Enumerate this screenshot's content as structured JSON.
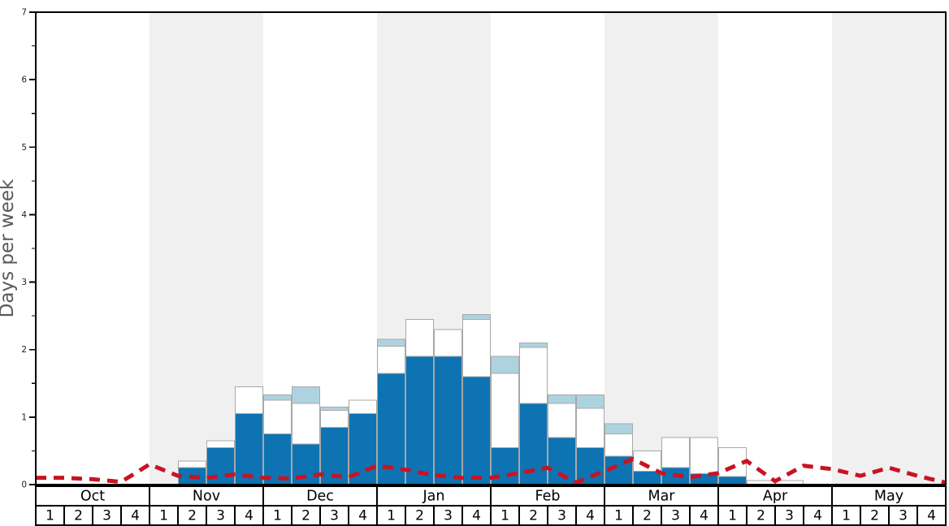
{
  "chart_data": {
    "type": "bar",
    "subtype": "stacked-bars-with-dashed-average-line",
    "title": "",
    "xlabel": "",
    "ylabel": "Days per week",
    "ylim": [
      0,
      7
    ],
    "y_major_ticks": [
      0,
      1,
      2,
      3,
      4,
      5,
      6,
      7
    ],
    "y_minor_step": 0.5,
    "grid": "off",
    "legend": "none",
    "months": [
      "Oct",
      "Nov",
      "Dec",
      "Jan",
      "Feb",
      "Mar",
      "Apr",
      "May"
    ],
    "weeks_per_month": [
      "1",
      "2",
      "3",
      "4"
    ],
    "shaded_months": [
      "Nov",
      "Jan",
      "Mar",
      "May"
    ],
    "categories": [
      "Oct-1",
      "Oct-2",
      "Oct-3",
      "Oct-4",
      "Nov-1",
      "Nov-2",
      "Nov-3",
      "Nov-4",
      "Dec-1",
      "Dec-2",
      "Dec-3",
      "Dec-4",
      "Jan-1",
      "Jan-2",
      "Jan-3",
      "Jan-4",
      "Feb-1",
      "Feb-2",
      "Feb-3",
      "Feb-4",
      "Mar-1",
      "Mar-2",
      "Mar-3",
      "Mar-4",
      "Apr-1",
      "Apr-2",
      "Apr-3",
      "Apr-4",
      "May-1",
      "May-2",
      "May-3",
      "May-4"
    ],
    "series": [
      {
        "name": "dark-blue-days",
        "color": "#0e73b2",
        "values": [
          0,
          0,
          0,
          0,
          0,
          0.25,
          0.55,
          1.05,
          0.75,
          0.6,
          0.85,
          1.05,
          1.65,
          1.9,
          1.9,
          1.6,
          0.55,
          1.2,
          0.7,
          0.55,
          0.42,
          0.2,
          0.25,
          0.16,
          0.12,
          0,
          0,
          0,
          0,
          0,
          0,
          0
        ]
      },
      {
        "name": "white-days",
        "color": "#ffffff",
        "values": [
          0,
          0,
          0,
          0,
          0,
          0.1,
          0.1,
          0.4,
          0.5,
          0.6,
          0.25,
          0.2,
          0.4,
          0.55,
          0.4,
          0.85,
          1.1,
          0.83,
          0.5,
          0.58,
          0.33,
          0.3,
          0.45,
          0.54,
          0.43,
          0.06,
          0.06,
          0,
          0,
          0,
          0,
          0
        ]
      },
      {
        "name": "light-blue-days",
        "color": "#aed3e0",
        "values": [
          0,
          0,
          0,
          0,
          0,
          0,
          0,
          0,
          0.08,
          0.25,
          0.05,
          0,
          0.1,
          0,
          0,
          0.07,
          0.25,
          0.07,
          0.13,
          0.2,
          0.15,
          0,
          0,
          0,
          0,
          0,
          0,
          0,
          0,
          0,
          0,
          0
        ]
      }
    ],
    "average_line": {
      "name": "red-dashed-average-line",
      "color": "#c91322",
      "style": "dashed",
      "x_positions": "week-boundaries-0-to-32",
      "values": [
        0.1,
        0.1,
        0.08,
        0.04,
        0.3,
        0.13,
        0.1,
        0.15,
        0.1,
        0.09,
        0.15,
        0.11,
        0.28,
        0.22,
        0.14,
        0.1,
        0.1,
        0.17,
        0.25,
        0.03,
        0.2,
        0.38,
        0.17,
        0.11,
        0.17,
        0.35,
        0.05,
        0.28,
        0.23,
        0.13,
        0.25,
        0.13,
        0.03
      ]
    }
  },
  "colors": {
    "band_gray": "#f0f0f0",
    "bar_border": "#a8a8a8",
    "frame": "#000000",
    "tick_label": "#222222",
    "table_border": "#000000",
    "table_text": "#000000",
    "axis_title": "#595959"
  }
}
